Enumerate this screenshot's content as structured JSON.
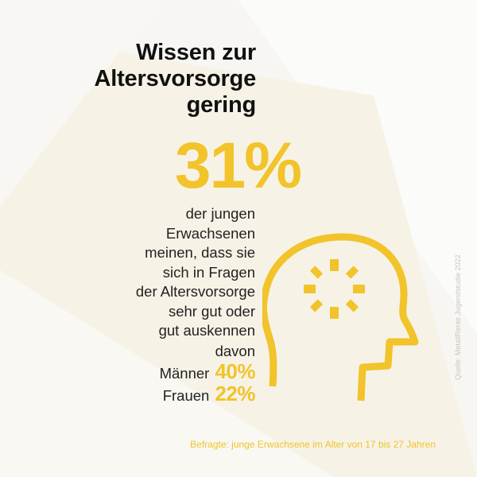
{
  "title": {
    "line1": "Wissen zur",
    "line2": "Altersvorsorge",
    "line3": "gering"
  },
  "stat": {
    "value": "31%"
  },
  "description": {
    "lines": [
      "der jungen",
      "Erwachsenen",
      "meinen, dass sie",
      "sich in Fragen",
      "der Altersvorsorge",
      "sehr gut oder",
      "gut auskennen"
    ]
  },
  "breakdown": {
    "label": "davon",
    "men_label": "Männer",
    "men_value": "40%",
    "women_label": "Frauen",
    "women_value": "22%"
  },
  "footer": "Befragte: junge Erwachsene im Alter von 17 bis 27 Jahren",
  "source": "Quelle: MetallRente Jugendstudie 2022",
  "icon": "head-with-lightbulb-icon",
  "colors": {
    "accent": "#f2c32a",
    "text": "#222222",
    "background": "#f7f6f3"
  }
}
